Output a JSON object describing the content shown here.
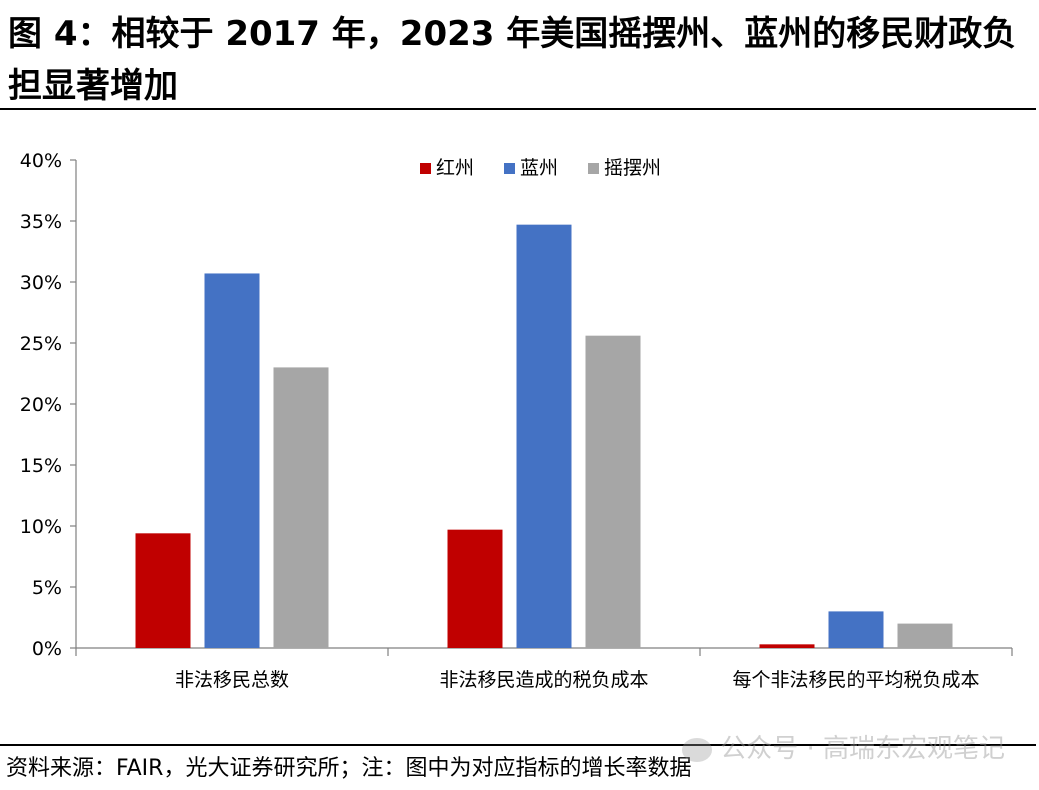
{
  "title": "图 4：相较于 2017 年，2023 年美国摇摆州、蓝州的移民财政负担显著增加",
  "source": "资料来源：FAIR，光大证券研究所；注：图中为对应指标的增长率数据",
  "watermark": "公众号 · 高瑞东宏观笔记",
  "colors": {
    "red": "#C00000",
    "blue": "#4472C4",
    "gray": "#A6A6A6",
    "axis": "#808080"
  },
  "chart_data": {
    "type": "bar",
    "categories": [
      "非法移民总数",
      "非法移民造成的税负成本",
      "每个非法移民的平均税负成本"
    ],
    "series": [
      {
        "name": "红州",
        "values": [
          9.4,
          9.7,
          0.3
        ],
        "color": "#C00000"
      },
      {
        "name": "蓝州",
        "values": [
          30.7,
          34.7,
          3.0
        ],
        "color": "#4472C4"
      },
      {
        "name": "摇摆州",
        "values": [
          23.0,
          25.6,
          2.0
        ],
        "color": "#A6A6A6"
      }
    ],
    "yticks": [
      "0%",
      "5%",
      "10%",
      "15%",
      "20%",
      "25%",
      "30%",
      "35%",
      "40%"
    ],
    "ylim": [
      0,
      40
    ],
    "unit": "%",
    "legend_position": "top-center",
    "grid": false
  }
}
